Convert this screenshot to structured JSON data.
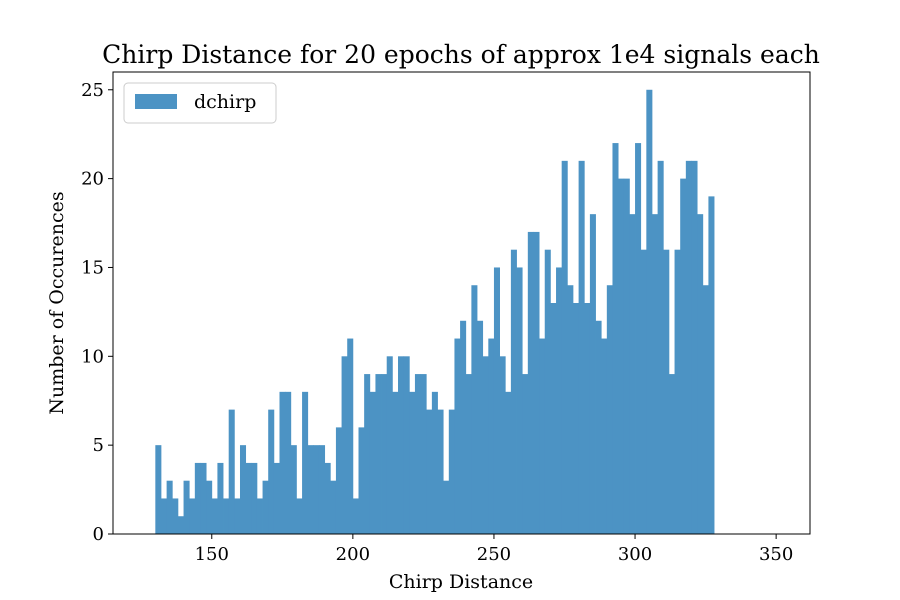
{
  "chart_data": {
    "type": "bar",
    "title": "Chirp Distance for 20 epochs of approx 1e4 signals each",
    "xlabel": "Chirp Distance",
    "ylabel": "Number of Occurences",
    "xlim": [
      115,
      362
    ],
    "ylim": [
      0,
      26
    ],
    "x_ticks": [
      150,
      200,
      250,
      300,
      350
    ],
    "y_ticks": [
      0,
      5,
      10,
      15,
      20,
      25
    ],
    "bin_start": 130,
    "bin_width": 2,
    "bar_color": "#4c93c4",
    "grid": false,
    "legend": {
      "position": "top-left",
      "entries": [
        "dchirp"
      ]
    },
    "series": [
      {
        "name": "dchirp",
        "values": [
          5,
          2,
          3,
          2,
          1,
          3,
          2,
          4,
          4,
          3,
          2,
          4,
          2,
          7,
          2,
          5,
          4,
          4,
          2,
          3,
          7,
          4,
          8,
          8,
          5,
          2,
          8,
          5,
          5,
          5,
          4,
          3,
          6,
          10,
          11,
          2,
          6,
          9,
          8,
          9,
          9,
          10,
          8,
          10,
          10,
          8,
          9,
          9,
          7,
          8,
          7,
          3,
          7,
          11,
          12,
          9,
          14,
          12,
          10,
          11,
          15,
          10,
          8,
          16,
          15,
          9,
          17,
          17,
          11,
          16,
          13,
          15,
          21,
          14,
          13,
          21,
          13,
          18,
          12,
          11,
          14,
          22,
          20,
          20,
          18,
          22,
          16,
          25,
          18,
          21,
          16,
          9,
          16,
          20,
          21,
          21,
          18,
          14,
          19
        ]
      }
    ]
  }
}
